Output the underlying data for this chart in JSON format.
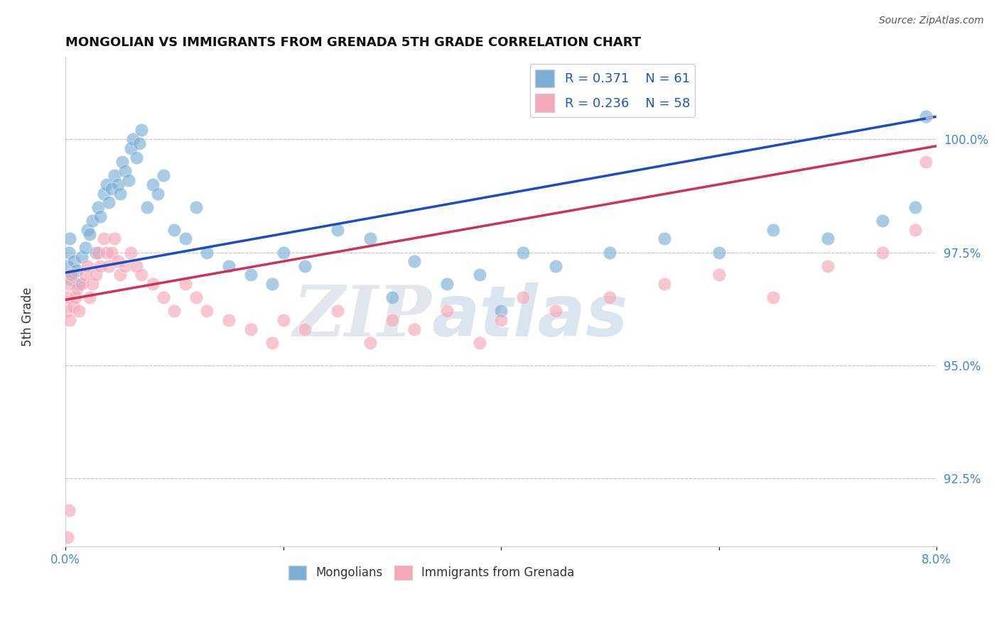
{
  "title": "MONGOLIAN VS IMMIGRANTS FROM GRENADA 5TH GRADE CORRELATION CHART",
  "source_text": "Source: ZipAtlas.com",
  "ylabel": "5th Grade",
  "xlim": [
    0.0,
    8.0
  ],
  "ylim": [
    91.0,
    101.8
  ],
  "yticks": [
    92.5,
    95.0,
    97.5,
    100.0
  ],
  "ytick_labels": [
    "92.5%",
    "95.0%",
    "97.5%",
    "100.0%"
  ],
  "blue_R": 0.371,
  "blue_N": 61,
  "pink_R": 0.236,
  "pink_N": 58,
  "blue_color": "#7BAFD4",
  "pink_color": "#F4A8B8",
  "blue_line_color": "#1A4CC4",
  "pink_line_color": "#CC3355",
  "blue_line_dash_color": "#AABBDD",
  "pink_line_dash_color": "#FFAACC",
  "watermark_color": "#DDEEFF",
  "blue_scatter_x": [
    0.02,
    0.03,
    0.04,
    0.05,
    0.06,
    0.08,
    0.1,
    0.12,
    0.15,
    0.18,
    0.2,
    0.22,
    0.25,
    0.28,
    0.3,
    0.32,
    0.35,
    0.38,
    0.4,
    0.42,
    0.45,
    0.48,
    0.5,
    0.52,
    0.55,
    0.58,
    0.6,
    0.62,
    0.65,
    0.68,
    0.7,
    0.75,
    0.8,
    0.85,
    0.9,
    1.0,
    1.1,
    1.2,
    1.3,
    1.5,
    1.7,
    1.9,
    2.0,
    2.2,
    2.5,
    2.8,
    3.0,
    3.2,
    3.5,
    3.8,
    4.0,
    4.2,
    4.5,
    5.0,
    5.5,
    6.0,
    6.5,
    7.0,
    7.5,
    7.8,
    7.9
  ],
  "blue_scatter_y": [
    97.2,
    97.5,
    97.8,
    96.9,
    97.0,
    97.3,
    97.1,
    96.8,
    97.4,
    97.6,
    98.0,
    97.9,
    98.2,
    97.5,
    98.5,
    98.3,
    98.8,
    99.0,
    98.6,
    98.9,
    99.2,
    99.0,
    98.8,
    99.5,
    99.3,
    99.1,
    99.8,
    100.0,
    99.6,
    99.9,
    100.2,
    98.5,
    99.0,
    98.8,
    99.2,
    98.0,
    97.8,
    98.5,
    97.5,
    97.2,
    97.0,
    96.8,
    97.5,
    97.2,
    98.0,
    97.8,
    96.5,
    97.3,
    96.8,
    97.0,
    96.2,
    97.5,
    97.2,
    97.5,
    97.8,
    97.5,
    98.0,
    97.8,
    98.2,
    98.5,
    100.5
  ],
  "pink_scatter_x": [
    0.01,
    0.02,
    0.03,
    0.04,
    0.05,
    0.07,
    0.09,
    0.1,
    0.12,
    0.15,
    0.18,
    0.2,
    0.22,
    0.25,
    0.28,
    0.3,
    0.32,
    0.35,
    0.38,
    0.4,
    0.42,
    0.45,
    0.48,
    0.5,
    0.55,
    0.6,
    0.65,
    0.7,
    0.8,
    0.9,
    1.0,
    1.1,
    1.2,
    1.3,
    1.5,
    1.7,
    1.9,
    2.0,
    2.2,
    2.5,
    2.8,
    3.0,
    3.2,
    3.5,
    3.8,
    4.0,
    4.2,
    4.5,
    5.0,
    5.5,
    6.0,
    6.5,
    7.0,
    7.5,
    7.8,
    7.9,
    0.02,
    0.03
  ],
  "pink_scatter_y": [
    96.2,
    96.5,
    96.8,
    96.0,
    97.0,
    96.3,
    96.5,
    96.7,
    96.2,
    96.8,
    97.0,
    97.2,
    96.5,
    96.8,
    97.0,
    97.5,
    97.2,
    97.8,
    97.5,
    97.2,
    97.5,
    97.8,
    97.3,
    97.0,
    97.2,
    97.5,
    97.2,
    97.0,
    96.8,
    96.5,
    96.2,
    96.8,
    96.5,
    96.2,
    96.0,
    95.8,
    95.5,
    96.0,
    95.8,
    96.2,
    95.5,
    96.0,
    95.8,
    96.2,
    95.5,
    96.0,
    96.5,
    96.2,
    96.5,
    96.8,
    97.0,
    96.5,
    97.2,
    97.5,
    98.0,
    99.5,
    91.2,
    91.8
  ]
}
